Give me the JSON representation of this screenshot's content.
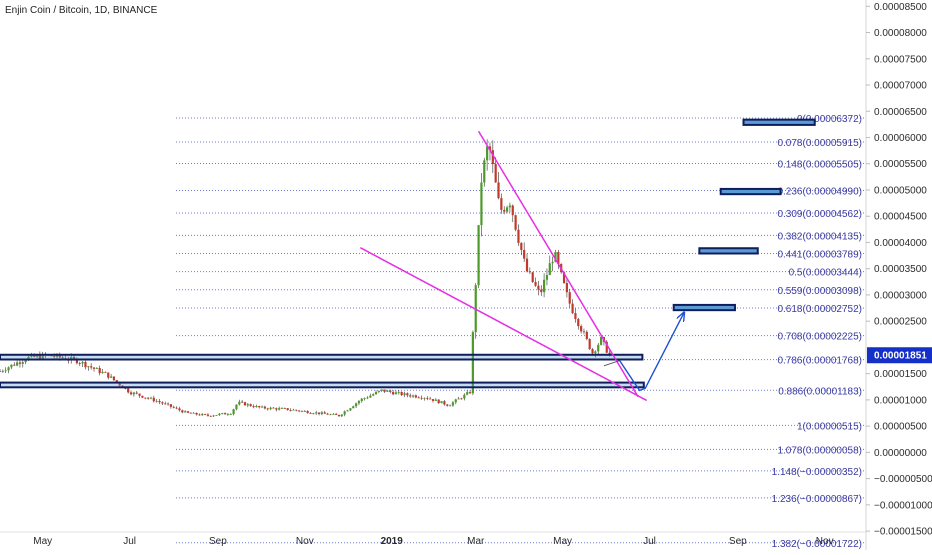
{
  "header": {
    "title": "Enjin Coin / Bitcoin, 1D, BINANCE"
  },
  "colors": {
    "up_candle": "#4c9a2a",
    "down_candle": "#c0392b",
    "fib_line": "#6b78d6",
    "fib_label": "#3a3aa0",
    "channel": "#e62ee6",
    "projection_arrow": "#1e4fd8",
    "zone_fill": "#5b9bd5",
    "zone_border": "#0f1e5a",
    "price_badge": "#1530c8"
  },
  "current_price": {
    "value": 1.851e-05,
    "label": "0.00001851"
  },
  "chart_data": {
    "type": "candlestick",
    "title": "Enjin Coin / Bitcoin, 1D, BINANCE",
    "x_axis": {
      "type": "date",
      "range": [
        "2018-04-01",
        "2019-11-30"
      ],
      "ticks": [
        {
          "label": "May",
          "date": "2018-05-01",
          "bold": false
        },
        {
          "label": "Jul",
          "date": "2018-07-01",
          "bold": false
        },
        {
          "label": "Sep",
          "date": "2018-09-01",
          "bold": false
        },
        {
          "label": "Nov",
          "date": "2018-11-01",
          "bold": false
        },
        {
          "label": "2019",
          "date": "2019-01-01",
          "bold": true
        },
        {
          "label": "Mar",
          "date": "2019-03-01",
          "bold": false
        },
        {
          "label": "May",
          "date": "2019-05-01",
          "bold": false
        },
        {
          "label": "Jul",
          "date": "2019-07-01",
          "bold": false
        },
        {
          "label": "Sep",
          "date": "2019-09-01",
          "bold": false
        },
        {
          "label": "Nov",
          "date": "2019-11-01",
          "bold": false
        }
      ]
    },
    "y_axis": {
      "range": [
        -1.86e-05,
        8.62e-05
      ],
      "ticks": [
        "0.00008500",
        "0.00008000",
        "0.00007500",
        "0.00007000",
        "0.00006500",
        "0.00006000",
        "0.00005500",
        "0.00005000",
        "0.00004500",
        "0.00004000",
        "0.00003500",
        "0.00003000",
        "0.00002500",
        "0.00001500",
        "0.00001000",
        "0.00000500",
        "0.00000000",
        "-0.00000500",
        "-0.00001000",
        "-0.00001500"
      ]
    },
    "price_series": [
      {
        "date": "2018-04-01",
        "price": 1.55e-05
      },
      {
        "date": "2018-04-20",
        "price": 1.8e-05
      },
      {
        "date": "2018-05-05",
        "price": 1.85e-05
      },
      {
        "date": "2018-05-25",
        "price": 1.75e-05
      },
      {
        "date": "2018-06-15",
        "price": 1.48e-05
      },
      {
        "date": "2018-07-01",
        "price": 1.15e-05
      },
      {
        "date": "2018-07-20",
        "price": 9.8e-06
      },
      {
        "date": "2018-08-10",
        "price": 7.5e-06
      },
      {
        "date": "2018-08-25",
        "price": 7e-06
      },
      {
        "date": "2018-09-10",
        "price": 7.5e-06
      },
      {
        "date": "2018-09-15",
        "price": 9.5e-06
      },
      {
        "date": "2018-10-01",
        "price": 8.5e-06
      },
      {
        "date": "2018-10-20",
        "price": 8.2e-06
      },
      {
        "date": "2018-11-10",
        "price": 7.5e-06
      },
      {
        "date": "2018-11-25",
        "price": 7e-06
      },
      {
        "date": "2018-12-10",
        "price": 1e-05
      },
      {
        "date": "2018-12-25",
        "price": 1.18e-05
      },
      {
        "date": "2019-01-10",
        "price": 1.1e-05
      },
      {
        "date": "2019-01-25",
        "price": 1.05e-05
      },
      {
        "date": "2019-02-10",
        "price": 9e-06
      },
      {
        "date": "2019-02-25",
        "price": 1.15e-05
      },
      {
        "date": "2019-02-27",
        "price": 2.25e-05
      },
      {
        "date": "2019-03-05",
        "price": 5.2e-05
      },
      {
        "date": "2019-03-10",
        "price": 5.9e-05
      },
      {
        "date": "2019-03-18",
        "price": 4.6e-05
      },
      {
        "date": "2019-03-25",
        "price": 4.8e-05
      },
      {
        "date": "2019-04-05",
        "price": 3.5e-05
      },
      {
        "date": "2019-04-15",
        "price": 3e-05
      },
      {
        "date": "2019-04-25",
        "price": 3.8e-05
      },
      {
        "date": "2019-05-05",
        "price": 2.9e-05
      },
      {
        "date": "2019-05-15",
        "price": 2.3e-05
      },
      {
        "date": "2019-05-22",
        "price": 1.9e-05
      },
      {
        "date": "2019-05-28",
        "price": 2.15e-05
      },
      {
        "date": "2019-06-03",
        "price": 1.85e-05
      }
    ],
    "fibonacci_levels": [
      {
        "ratio": "0",
        "value": "0.00006372",
        "label": "0(0.00006372)"
      },
      {
        "ratio": "0.078",
        "value": "0.00005915",
        "label": "0.078(0.00005915)"
      },
      {
        "ratio": "0.148",
        "value": "0.00005505",
        "label": "0.148(0.00005505)"
      },
      {
        "ratio": "0.236",
        "value": "0.00004990",
        "label": "0.236(0.00004990)"
      },
      {
        "ratio": "0.309",
        "value": "0.00004562",
        "label": "0.309(0.00004562)"
      },
      {
        "ratio": "0.382",
        "value": "0.00004135",
        "label": "0.382(0.00004135)"
      },
      {
        "ratio": "0.441",
        "value": "0.00003789",
        "label": "0.441(0.00003789)"
      },
      {
        "ratio": "0.5",
        "value": "0.00003444",
        "label": "0.5(0.00003444)"
      },
      {
        "ratio": "0.559",
        "value": "0.00003098",
        "label": "0.559(0.00003098)"
      },
      {
        "ratio": "0.618",
        "value": "0.00002752",
        "label": "0.618(0.00002752)"
      },
      {
        "ratio": "0.708",
        "value": "0.00002225",
        "label": "0.708(0.00002225)"
      },
      {
        "ratio": "0.786",
        "value": "0.00001768",
        "label": "0.786(0.00001768)"
      },
      {
        "ratio": "0.886",
        "value": "0.00001183",
        "label": "0.886(0.00001183)"
      },
      {
        "ratio": "1",
        "value": "0.00000515",
        "label": "1(0.00000515)"
      },
      {
        "ratio": "1.078",
        "value": "0.00000058",
        "label": "1.078(0.00000058)"
      },
      {
        "ratio": "1.148",
        "value": "-0.00000352",
        "label": "1.148(−0.00000352)"
      },
      {
        "ratio": "1.236",
        "value": "-0.00000867",
        "label": "1.236(−0.00000867)"
      },
      {
        "ratio": "1.382",
        "value": "-0.00001722",
        "label": "1.382(−0.00001722)"
      }
    ],
    "horizontal_zones": [
      {
        "from": "2018-04-01",
        "to": "2019-06-26",
        "low": 1.77e-05,
        "high": 1.86e-05
      },
      {
        "from": "2018-04-01",
        "to": "2019-06-27",
        "low": 1.24e-05,
        "high": 1.33e-05
      }
    ],
    "target_boxes": [
      {
        "from": "2019-07-18",
        "to": "2019-08-30",
        "low": 2.71e-05,
        "high": 2.81e-05
      },
      {
        "from": "2019-08-05",
        "to": "2019-09-15",
        "low": 3.79e-05,
        "high": 3.89e-05
      },
      {
        "from": "2019-08-20",
        "to": "2019-10-01",
        "low": 4.92e-05,
        "high": 5.02e-05
      },
      {
        "from": "2019-09-05",
        "to": "2019-10-25",
        "low": 6.24e-05,
        "high": 6.34e-05
      }
    ],
    "channel_lines": [
      {
        "from": [
          "2019-03-03",
          6.12e-05
        ],
        "to": [
          "2019-06-23",
          1.06e-05
        ]
      },
      {
        "from": [
          "2018-12-10",
          3.9e-05
        ],
        "to": [
          "2019-06-29",
          9.9e-06
        ]
      }
    ],
    "projection_path": [
      [
        "2019-05-30",
        1.65e-05
      ],
      [
        "2019-06-10",
        1.75e-05
      ],
      [
        "2019-06-24",
        1.18e-05
      ],
      [
        "2019-06-28",
        1.22e-05
      ],
      [
        "2019-07-25",
        2.65e-05
      ]
    ]
  }
}
